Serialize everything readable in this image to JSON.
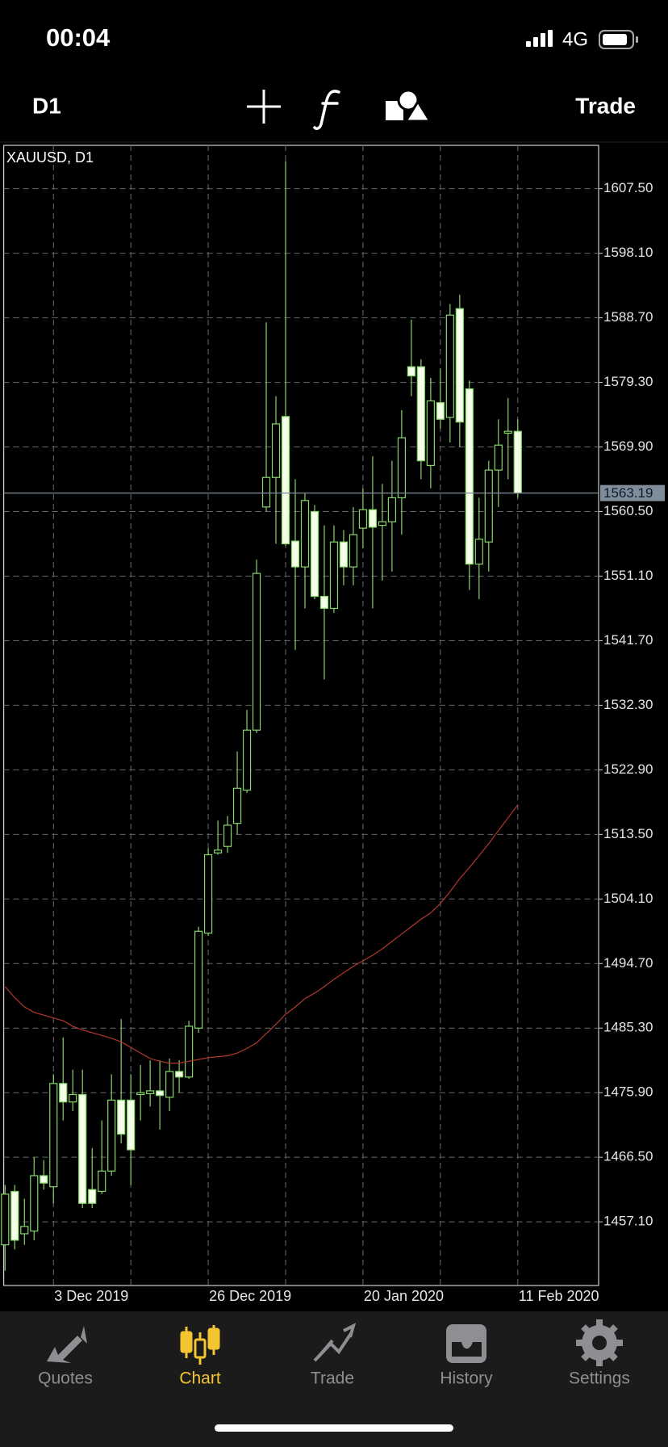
{
  "status_bar": {
    "time": "00:04",
    "network": "4G"
  },
  "toolbar": {
    "timeframe": "D1",
    "action": "Trade"
  },
  "chart_data": {
    "type": "candlestick",
    "title": "XAUUSD, D1",
    "grid": true,
    "wick_color": "#86d46b",
    "bull_fill": "#000000",
    "bear_fill": "#f4ffe8",
    "ma_color": "#b3382c",
    "current_color": "#7f8c99",
    "categories": [
      null,
      null,
      null,
      null,
      null,
      "3 Dec 2019",
      null,
      null,
      null,
      null,
      null,
      null,
      null,
      null,
      null,
      null,
      null,
      null,
      null,
      null,
      null,
      "26 Dec 2019",
      null,
      null,
      null,
      null,
      null,
      null,
      null,
      null,
      null,
      null,
      null,
      null,
      null,
      null,
      null,
      "20 Jan 2020",
      null,
      null,
      null,
      null,
      null,
      null,
      null,
      null,
      null,
      null,
      null,
      null,
      null,
      null,
      null,
      "11 Feb 2020"
    ],
    "open": [
      1453.75,
      1461.53,
      1455.36,
      1455.76,
      1463.82,
      1462.21,
      1477.24,
      1474.55,
      1475.63,
      1461.8,
      1461.53,
      1464.49,
      1474.82,
      1474.82,
      1475.63,
      1475.76,
      1476.17,
      1475.23,
      1478.99,
      1478.18,
      1485.3,
      1499.13,
      1510.81,
      1511.75,
      1515.11,
      1519.95,
      1528.68,
      1561.17,
      1565.47,
      1574.33,
      1556.2,
      1552.44,
      1560.5,
      1548.15,
      1546.4,
      1556.07,
      1552.44,
      1558.08,
      1560.77,
      1558.49,
      1559.02,
      1562.51,
      1581.58,
      1581.58,
      1567.21,
      1576.35,
      1574.2,
      1590.04,
      1578.36,
      1552.85,
      1556.07,
      1566.54,
      1571.91,
      1572.18
    ],
    "high": [
      1462.47,
      1462.47,
      1460.46,
      1466.5,
      1466.1,
      1478.58,
      1483.96,
      1479.26,
      1479.26,
      1467.84,
      1471.87,
      1478.58,
      1486.64,
      1478.58,
      1479.93,
      1480.6,
      1480.6,
      1480.87,
      1480.6,
      1486.38,
      1500.07,
      1511.48,
      1515.51,
      1516.19,
      1525.59,
      1531.63,
      1553.52,
      1588.03,
      1577.29,
      1611.53,
      1565.2,
      1563.19,
      1561.44,
      1558.49,
      1558.49,
      1557.81,
      1561.17,
      1563.86,
      1568.56,
      1564.53,
      1567.89,
      1575.27,
      1588.43,
      1582.66,
      1579.97,
      1581.31,
      1590.71,
      1592.06,
      1579.57,
      1562.51,
      1567.89,
      1573.93,
      1577.02,
      1573.93
    ],
    "low": [
      1449.99,
      1453.08,
      1453.75,
      1454.42,
      1461.8,
      1459.79,
      1471.87,
      1473.21,
      1459.12,
      1459.12,
      1461.13,
      1463.82,
      1468.51,
      1462.47,
      1471.87,
      1473.88,
      1470.53,
      1473.21,
      1475.9,
      1477.91,
      1484.63,
      1498.73,
      1510.54,
      1510.81,
      1513.5,
      1519.54,
      1528.27,
      1560.5,
      1555.8,
      1555.53,
      1540.36,
      1546.4,
      1547.74,
      1536.06,
      1545.73,
      1549.76,
      1549.76,
      1555.13,
      1546.4,
      1550.43,
      1551.77,
      1557.14,
      1577.29,
      1565.2,
      1563.86,
      1572.59,
      1570.57,
      1569.9,
      1549.09,
      1547.74,
      1551.77,
      1561.17,
      1565.2,
      1562.51
    ],
    "close": [
      1461.13,
      1454.42,
      1456.43,
      1463.82,
      1462.74,
      1477.24,
      1474.55,
      1475.63,
      1459.79,
      1459.79,
      1464.49,
      1474.82,
      1469.86,
      1467.58,
      1475.9,
      1476.17,
      1475.49,
      1478.99,
      1478.18,
      1485.57,
      1499.4,
      1510.54,
      1511.21,
      1514.84,
      1520.21,
      1528.68,
      1551.5,
      1565.47,
      1573.26,
      1555.8,
      1552.44,
      1562.11,
      1548.15,
      1546.4,
      1556.07,
      1552.44,
      1557.14,
      1560.77,
      1558.22,
      1559.02,
      1562.51,
      1571.24,
      1580.24,
      1567.89,
      1576.61,
      1573.93,
      1589.1,
      1573.53,
      1552.85,
      1556.47,
      1566.54,
      1570.17,
      1572.18,
      1563.19
    ],
    "ma": [
      1491.34,
      1489.73,
      1488.39,
      1487.58,
      1487.18,
      1486.78,
      1486.38,
      1485.57,
      1485.03,
      1484.63,
      1484.23,
      1483.82,
      1483.29,
      1482.48,
      1481.67,
      1480.87,
      1480.47,
      1480.2,
      1480.2,
      1480.47,
      1480.73,
      1481.0,
      1481.14,
      1481.27,
      1481.67,
      1482.34,
      1483.15,
      1484.49,
      1485.84,
      1487.32,
      1488.39,
      1489.6,
      1490.4,
      1491.34,
      1492.42,
      1493.36,
      1494.3,
      1495.1,
      1495.91,
      1496.85,
      1497.92,
      1499.0,
      1500.07,
      1501.15,
      1502.08,
      1503.43,
      1505.17,
      1507.05,
      1508.67,
      1510.41,
      1512.16,
      1514.04,
      1515.92,
      1517.8
    ],
    "current_price": 1563.19,
    "ylim": [
      1447.83,
      1613.81
    ],
    "yticks": [
      {
        "value": 1607.5,
        "label": "1607.50"
      },
      {
        "value": 1598.1,
        "label": "1598.10"
      },
      {
        "value": 1588.7,
        "label": "1588.70"
      },
      {
        "value": 1579.3,
        "label": "1579.30"
      },
      {
        "value": 1569.9,
        "label": "1569.90"
      },
      {
        "value": 1560.5,
        "label": "1560.50"
      },
      {
        "value": 1551.1,
        "label": "1551.10"
      },
      {
        "value": 1541.7,
        "label": "1541.70"
      },
      {
        "value": 1532.3,
        "label": "1532.30"
      },
      {
        "value": 1522.9,
        "label": "1522.90"
      },
      {
        "value": 1513.5,
        "label": "1513.50"
      },
      {
        "value": 1504.1,
        "label": "1504.10"
      },
      {
        "value": 1494.7,
        "label": "1494.70"
      },
      {
        "value": 1485.3,
        "label": "1485.30"
      },
      {
        "value": 1475.9,
        "label": "1475.90"
      },
      {
        "value": 1466.5,
        "label": "1466.50"
      },
      {
        "value": 1457.1,
        "label": "1457.10"
      }
    ]
  },
  "tab_bar": {
    "tabs": [
      "Quotes",
      "Chart",
      "Trade",
      "History",
      "Settings"
    ],
    "active": "Chart"
  }
}
